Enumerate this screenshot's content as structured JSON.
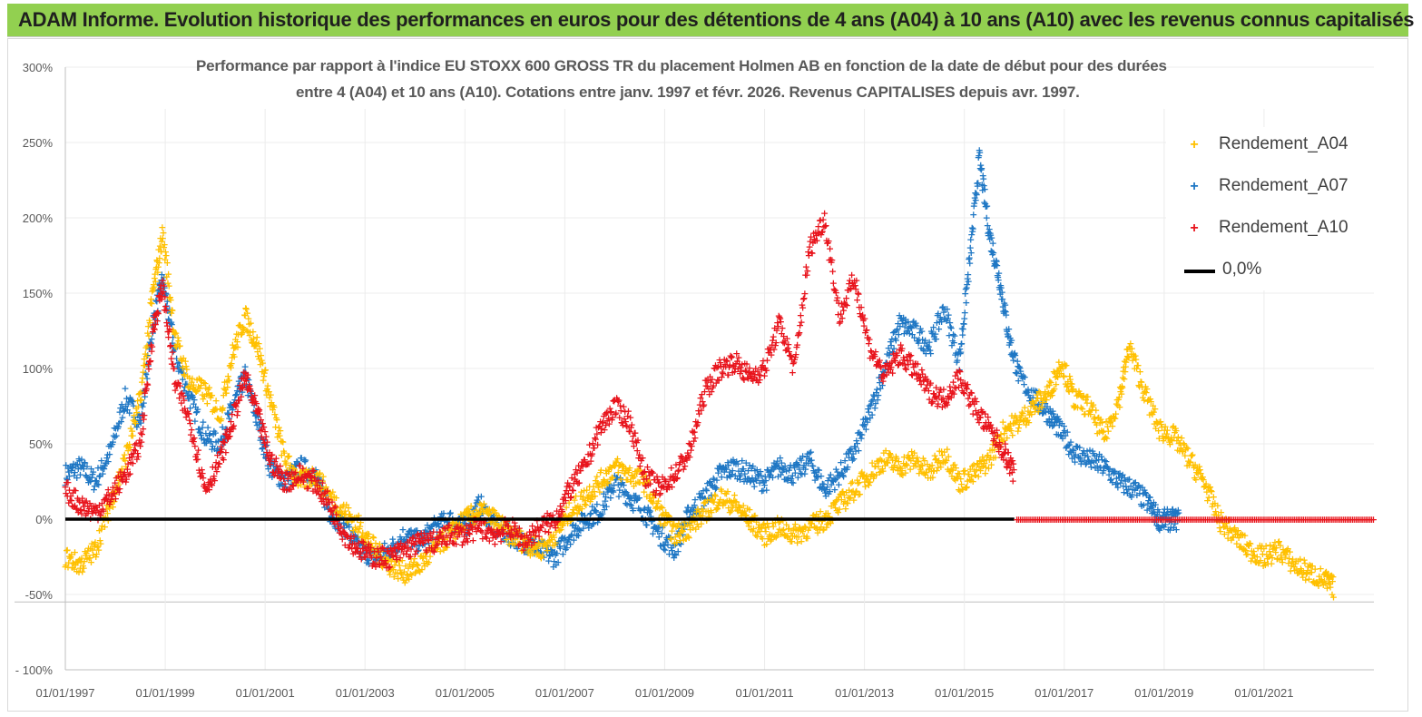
{
  "banner": {
    "title": "ADAM Informe. Evolution historique des performances en euros pour des détentions de 4 ans (A04) à 10 ans (A10) avec les revenus connus capitalisés",
    "color": "#92d050"
  },
  "chart_data": {
    "type": "scatter",
    "title_line1": "Performance par rapport à l'indice EU STOXX 600 GROSS TR  du placement Holmen AB en fonction de la date de début pour des durées",
    "title_line2": "entre 4 (A04) et 10 ans (A10).  Cotations entre janv. 1997 et févr. 2026. Revenus CAPITALISES depuis avr. 1997.",
    "ylim": [
      -100,
      300
    ],
    "y_ticks": [
      "300%",
      "250%",
      "200%",
      "150%",
      "100%",
      "50%",
      "0%",
      "-50%",
      "- 100%"
    ],
    "y_tick_values": [
      300,
      250,
      200,
      150,
      100,
      50,
      0,
      -50,
      -100
    ],
    "x_ticks": [
      "01/01/1997",
      "01/01/1999",
      "01/01/2001",
      "01/01/2003",
      "01/01/2005",
      "01/01/2007",
      "01/01/2009",
      "01/01/2011",
      "01/01/2013",
      "01/01/2015",
      "01/01/2017",
      "01/01/2019",
      "01/01/2021"
    ],
    "x_tick_values": [
      1997,
      1999,
      2001,
      2003,
      2005,
      2007,
      2009,
      2011,
      2013,
      2015,
      2017,
      2019,
      2021
    ],
    "xlim": [
      1997,
      2023.2
    ],
    "series": [
      {
        "name": "Rendement_A04",
        "color": "#ffc000",
        "points": [
          [
            1997.0,
            -25
          ],
          [
            1997.3,
            -30
          ],
          [
            1997.6,
            -20
          ],
          [
            1997.9,
            10
          ],
          [
            1998.2,
            40
          ],
          [
            1998.5,
            80
          ],
          [
            1998.75,
            150
          ],
          [
            1998.95,
            190
          ],
          [
            1999.2,
            120
          ],
          [
            1999.5,
            90
          ],
          [
            1999.8,
            85
          ],
          [
            2000.1,
            70
          ],
          [
            2000.35,
            110
          ],
          [
            2000.6,
            135
          ],
          [
            2000.85,
            115
          ],
          [
            2001.1,
            80
          ],
          [
            2001.4,
            40
          ],
          [
            2001.7,
            25
          ],
          [
            2002.0,
            30
          ],
          [
            2002.3,
            15
          ],
          [
            2002.6,
            5
          ],
          [
            2002.9,
            -5
          ],
          [
            2003.2,
            -20
          ],
          [
            2003.5,
            -30
          ],
          [
            2003.8,
            -35
          ],
          [
            2004.1,
            -30
          ],
          [
            2004.4,
            -20
          ],
          [
            2004.7,
            -10
          ],
          [
            2005.0,
            0
          ],
          [
            2005.3,
            5
          ],
          [
            2005.6,
            0
          ],
          [
            2005.9,
            -10
          ],
          [
            2006.2,
            -15
          ],
          [
            2006.5,
            -20
          ],
          [
            2006.8,
            -10
          ],
          [
            2007.1,
            5
          ],
          [
            2007.4,
            15
          ],
          [
            2007.7,
            25
          ],
          [
            2008.0,
            35
          ],
          [
            2008.3,
            30
          ],
          [
            2008.6,
            25
          ],
          [
            2008.9,
            5
          ],
          [
            2009.2,
            -10
          ],
          [
            2009.5,
            -5
          ],
          [
            2009.8,
            5
          ],
          [
            2010.1,
            15
          ],
          [
            2010.4,
            10
          ],
          [
            2010.7,
            0
          ],
          [
            2011.0,
            -10
          ],
          [
            2011.3,
            -5
          ],
          [
            2011.6,
            -10
          ],
          [
            2011.9,
            -5
          ],
          [
            2012.2,
            0
          ],
          [
            2012.5,
            10
          ],
          [
            2012.8,
            20
          ],
          [
            2013.1,
            30
          ],
          [
            2013.4,
            40
          ],
          [
            2013.7,
            35
          ],
          [
            2014.0,
            40
          ],
          [
            2014.3,
            30
          ],
          [
            2014.6,
            45
          ],
          [
            2014.9,
            25
          ],
          [
            2015.2,
            30
          ],
          [
            2015.5,
            40
          ],
          [
            2015.8,
            60
          ],
          [
            2016.1,
            65
          ],
          [
            2016.4,
            75
          ],
          [
            2016.7,
            85
          ],
          [
            2016.95,
            105
          ],
          [
            2017.2,
            80
          ],
          [
            2017.5,
            75
          ],
          [
            2017.8,
            55
          ],
          [
            2018.1,
            80
          ],
          [
            2018.3,
            115
          ],
          [
            2018.6,
            85
          ],
          [
            2018.9,
            60
          ],
          [
            2019.2,
            55
          ],
          [
            2019.5,
            40
          ],
          [
            2019.8,
            25
          ],
          [
            2020.1,
            0
          ],
          [
            2020.4,
            -10
          ],
          [
            2020.7,
            -20
          ],
          [
            2021.0,
            -25
          ],
          [
            2021.3,
            -20
          ],
          [
            2021.6,
            -30
          ],
          [
            2021.9,
            -35
          ],
          [
            2022.2,
            -40
          ],
          [
            2022.4,
            -45
          ]
        ]
      },
      {
        "name": "Rendement_A07",
        "color": "#1f77c4",
        "points": [
          [
            1997.0,
            30
          ],
          [
            1997.3,
            35
          ],
          [
            1997.6,
            25
          ],
          [
            1997.9,
            45
          ],
          [
            1998.2,
            80
          ],
          [
            1998.5,
            65
          ],
          [
            1998.75,
            130
          ],
          [
            1998.95,
            160
          ],
          [
            1999.2,
            110
          ],
          [
            1999.5,
            80
          ],
          [
            1999.8,
            55
          ],
          [
            2000.1,
            50
          ],
          [
            2000.35,
            75
          ],
          [
            2000.6,
            95
          ],
          [
            2000.85,
            65
          ],
          [
            2001.1,
            35
          ],
          [
            2001.4,
            25
          ],
          [
            2001.7,
            35
          ],
          [
            2002.0,
            30
          ],
          [
            2002.3,
            5
          ],
          [
            2002.6,
            -5
          ],
          [
            2002.9,
            -20
          ],
          [
            2003.2,
            -25
          ],
          [
            2003.5,
            -20
          ],
          [
            2003.8,
            -10
          ],
          [
            2004.1,
            -15
          ],
          [
            2004.4,
            -5
          ],
          [
            2004.7,
            0
          ],
          [
            2005.0,
            -5
          ],
          [
            2005.3,
            10
          ],
          [
            2005.6,
            -5
          ],
          [
            2005.9,
            -10
          ],
          [
            2006.2,
            -15
          ],
          [
            2006.5,
            -20
          ],
          [
            2006.8,
            -25
          ],
          [
            2007.1,
            -10
          ],
          [
            2007.4,
            0
          ],
          [
            2007.7,
            5
          ],
          [
            2008.0,
            25
          ],
          [
            2008.3,
            15
          ],
          [
            2008.6,
            5
          ],
          [
            2008.9,
            -10
          ],
          [
            2009.2,
            -20
          ],
          [
            2009.5,
            5
          ],
          [
            2009.8,
            15
          ],
          [
            2010.1,
            30
          ],
          [
            2010.4,
            35
          ],
          [
            2010.7,
            30
          ],
          [
            2011.0,
            25
          ],
          [
            2011.3,
            35
          ],
          [
            2011.6,
            30
          ],
          [
            2011.9,
            40
          ],
          [
            2012.2,
            20
          ],
          [
            2012.5,
            30
          ],
          [
            2012.8,
            45
          ],
          [
            2013.1,
            70
          ],
          [
            2013.4,
            100
          ],
          [
            2013.7,
            130
          ],
          [
            2014.0,
            125
          ],
          [
            2014.3,
            115
          ],
          [
            2014.6,
            140
          ],
          [
            2014.9,
            105
          ],
          [
            2015.1,
            170
          ],
          [
            2015.3,
            240
          ],
          [
            2015.5,
            190
          ],
          [
            2015.7,
            160
          ],
          [
            2015.9,
            120
          ],
          [
            2016.1,
            95
          ],
          [
            2016.4,
            80
          ],
          [
            2016.7,
            70
          ],
          [
            2016.9,
            60
          ],
          [
            2017.2,
            45
          ],
          [
            2017.5,
            40
          ],
          [
            2017.8,
            35
          ],
          [
            2018.1,
            25
          ],
          [
            2018.4,
            20
          ],
          [
            2018.7,
            10
          ],
          [
            2018.9,
            0
          ],
          [
            2019.1,
            0
          ],
          [
            2019.3,
            0
          ]
        ]
      },
      {
        "name": "Rendement_A10",
        "color": "#e8141c",
        "points": [
          [
            1997.0,
            20
          ],
          [
            1997.3,
            10
          ],
          [
            1997.6,
            5
          ],
          [
            1997.9,
            15
          ],
          [
            1998.2,
            30
          ],
          [
            1998.5,
            50
          ],
          [
            1998.75,
            125
          ],
          [
            1998.95,
            155
          ],
          [
            1999.2,
            90
          ],
          [
            1999.5,
            65
          ],
          [
            1999.8,
            20
          ],
          [
            2000.1,
            40
          ],
          [
            2000.35,
            65
          ],
          [
            2000.6,
            95
          ],
          [
            2000.85,
            70
          ],
          [
            2001.1,
            40
          ],
          [
            2001.4,
            25
          ],
          [
            2001.7,
            30
          ],
          [
            2002.0,
            25
          ],
          [
            2002.3,
            10
          ],
          [
            2002.6,
            -10
          ],
          [
            2002.9,
            -20
          ],
          [
            2003.2,
            -25
          ],
          [
            2003.5,
            -25
          ],
          [
            2003.8,
            -20
          ],
          [
            2004.1,
            -15
          ],
          [
            2004.4,
            -15
          ],
          [
            2004.7,
            -10
          ],
          [
            2005.0,
            -10
          ],
          [
            2005.3,
            -5
          ],
          [
            2005.6,
            -10
          ],
          [
            2005.9,
            -5
          ],
          [
            2006.2,
            -15
          ],
          [
            2006.5,
            -5
          ],
          [
            2006.8,
            0
          ],
          [
            2007.1,
            20
          ],
          [
            2007.4,
            35
          ],
          [
            2007.7,
            60
          ],
          [
            2008.0,
            75
          ],
          [
            2008.3,
            65
          ],
          [
            2008.6,
            30
          ],
          [
            2008.9,
            20
          ],
          [
            2009.2,
            30
          ],
          [
            2009.5,
            45
          ],
          [
            2009.8,
            85
          ],
          [
            2010.1,
            100
          ],
          [
            2010.4,
            105
          ],
          [
            2010.7,
            95
          ],
          [
            2011.0,
            100
          ],
          [
            2011.3,
            130
          ],
          [
            2011.6,
            100
          ],
          [
            2011.9,
            180
          ],
          [
            2012.2,
            200
          ],
          [
            2012.5,
            135
          ],
          [
            2012.8,
            160
          ],
          [
            2013.1,
            115
          ],
          [
            2013.4,
            95
          ],
          [
            2013.7,
            110
          ],
          [
            2014.0,
            100
          ],
          [
            2014.3,
            85
          ],
          [
            2014.6,
            80
          ],
          [
            2014.9,
            95
          ],
          [
            2015.2,
            75
          ],
          [
            2015.5,
            60
          ],
          [
            2015.8,
            45
          ],
          [
            2016.0,
            30
          ]
        ]
      },
      {
        "name": "0,0%",
        "color": "#000000",
        "points": [
          [
            1997.0,
            0
          ],
          [
            2016.0,
            0
          ]
        ]
      }
    ],
    "legend": [
      "Rendement_A04",
      "Rendement_A07",
      "Rendement_A10",
      "0,0%"
    ],
    "legend_position": "top-right",
    "zero_tail": {
      "from": 2016.05,
      "to": 2023.2,
      "color": "#e8141c"
    }
  }
}
